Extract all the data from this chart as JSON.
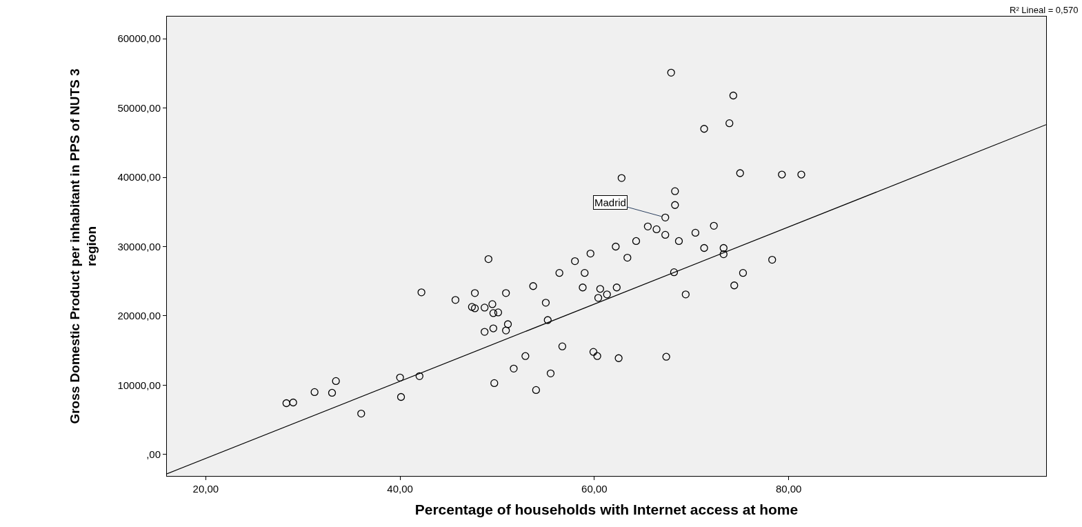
{
  "chart_data": {
    "type": "scatter",
    "xlabel": "Percentage of households with Internet access at home",
    "ylabel": "Gross Domestic Product per inhabitant in PPS of NUTS 3 region",
    "x": [
      28.3,
      29.0,
      31.2,
      33.0,
      33.4,
      36.0,
      40.0,
      40.1,
      42.0,
      42.2,
      45.7,
      47.4,
      47.7,
      47.7,
      48.7,
      48.7,
      49.1,
      49.5,
      49.6,
      49.6,
      49.7,
      50.1,
      50.9,
      50.9,
      51.1,
      51.7,
      52.9,
      53.7,
      54.0,
      55.0,
      55.2,
      55.5,
      56.4,
      56.7,
      58.0,
      58.8,
      59.0,
      59.6,
      59.9,
      60.3,
      60.4,
      60.6,
      61.3,
      62.2,
      62.3,
      62.5,
      62.8,
      63.4,
      64.3,
      65.5,
      66.4,
      67.3,
      67.3,
      67.4,
      67.9,
      68.2,
      68.3,
      68.3,
      68.7,
      69.4,
      70.4,
      71.3,
      71.3,
      72.3,
      73.3,
      73.3,
      73.9,
      74.3,
      74.4,
      75.0,
      75.3,
      78.3,
      79.3,
      81.3
    ],
    "series": [
      {
        "type": "scatter",
        "color": "#000000",
        "marker": "circle",
        "values": [
          7400,
          7500,
          9000,
          8900,
          10600,
          5900,
          11100,
          8300,
          11300,
          23400,
          22300,
          21300,
          23300,
          21100,
          21200,
          17700,
          28200,
          21700,
          20400,
          18200,
          10300,
          20500,
          17900,
          23300,
          18800,
          12400,
          14200,
          24300,
          9300,
          21900,
          19400,
          11700,
          26200,
          15600,
          27900,
          24100,
          26200,
          29000,
          14800,
          14200,
          22600,
          23900,
          23100,
          30000,
          24100,
          13900,
          39900,
          28400,
          30800,
          32900,
          32500,
          34200,
          31700,
          14100,
          55100,
          26300,
          38000,
          36000,
          30800,
          23100,
          32000,
          29800,
          47000,
          33000,
          29800,
          28900,
          47800,
          51800,
          24400,
          40600,
          26200,
          28100,
          40400,
          40400
        ]
      },
      {
        "type": "line",
        "color": "#000000",
        "line_style": "solid",
        "x": [
          16.0,
          106.5
        ],
        "values": [
          -2800,
          47600
        ]
      }
    ],
    "xlim": [
      16.0,
      106.5
    ],
    "ylim": [
      -3100,
      63200
    ],
    "xticks": [
      {
        "value": 20,
        "label": "20,00"
      },
      {
        "value": 40,
        "label": "40,00"
      },
      {
        "value": 60,
        "label": "60,00"
      },
      {
        "value": 80,
        "label": "80,00"
      }
    ],
    "yticks": [
      {
        "value": 0,
        "label": ",00"
      },
      {
        "value": 10000,
        "label": "10000,00"
      },
      {
        "value": 20000,
        "label": "20000,00"
      },
      {
        "value": 30000,
        "label": "30000,00"
      },
      {
        "value": 40000,
        "label": "40000,00"
      },
      {
        "value": 50000,
        "label": "50000,00"
      },
      {
        "value": 60000,
        "label": "60000,00"
      }
    ],
    "annotations": [
      {
        "text": "Madrid",
        "x": 67.3,
        "y": 34200
      },
      "R² Lineal = 0,570"
    ],
    "grid": false
  }
}
